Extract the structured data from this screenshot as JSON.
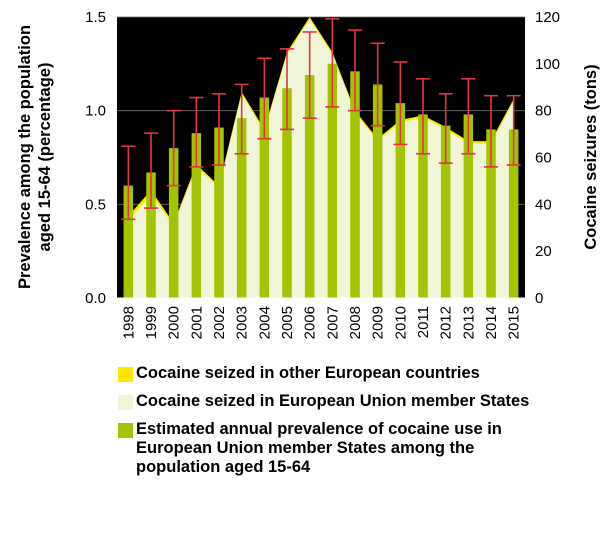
{
  "chart_data": {
    "type": "bar+area",
    "categories": [
      "1998",
      "1999",
      "2000",
      "2001",
      "2002",
      "2003",
      "2004",
      "2005",
      "2006",
      "2007",
      "2008",
      "2009",
      "2010",
      "2011",
      "2012",
      "2013",
      "2014",
      "2015"
    ],
    "left_axis": {
      "label": "Prevalence among the population aged 15-64 (percentage)",
      "ticks": [
        "0.0",
        "0.5",
        "1.0",
        "1.5"
      ],
      "ylim": [
        0,
        1.5
      ]
    },
    "right_axis": {
      "label": "Cocaine seizures (tons)",
      "ticks": [
        "0",
        "20",
        "40",
        "60",
        "80",
        "100",
        "120"
      ],
      "ylim": [
        0,
        120
      ]
    },
    "series": [
      {
        "name": "Cocaine seized in other European countries",
        "type": "area",
        "axis": "right",
        "color": "#ffe600",
        "values": [
          35,
          46,
          32,
          57,
          48,
          88,
          72,
          105,
          120,
          105,
          80,
          68,
          76,
          78,
          73,
          67,
          67,
          85
        ]
      },
      {
        "name": "Cocaine seized in European Union member States",
        "type": "area",
        "axis": "right",
        "color": "#f1f5d8",
        "values": [
          33,
          44,
          31,
          56,
          47,
          87,
          71,
          104,
          119,
          104,
          79,
          67,
          75,
          77,
          72,
          66,
          66,
          84
        ]
      },
      {
        "name": "Estimated annual prevalence of cocaine use in European Union member States among the population aged 15-64",
        "type": "bar",
        "axis": "left",
        "color": "#a3c400",
        "values": [
          0.6,
          0.67,
          0.8,
          0.88,
          0.91,
          0.96,
          1.07,
          1.12,
          1.19,
          1.25,
          1.21,
          1.14,
          1.04,
          0.98,
          0.92,
          0.98,
          0.9,
          0.9
        ],
        "error_low": [
          0.42,
          0.48,
          0.6,
          0.7,
          0.71,
          0.77,
          0.85,
          0.9,
          0.96,
          1.02,
          1.0,
          0.92,
          0.82,
          0.77,
          0.72,
          0.77,
          0.7,
          0.71
        ],
        "error_high": [
          0.81,
          0.88,
          1.0,
          1.07,
          1.09,
          1.14,
          1.28,
          1.33,
          1.42,
          1.49,
          1.43,
          1.36,
          1.26,
          1.17,
          1.09,
          1.17,
          1.08,
          1.08
        ],
        "error_color": "#e4353d"
      }
    ]
  },
  "colors": {
    "plot_background": "#000000",
    "gridline": "#6d6d6d",
    "axis_line": "#ffffff"
  }
}
